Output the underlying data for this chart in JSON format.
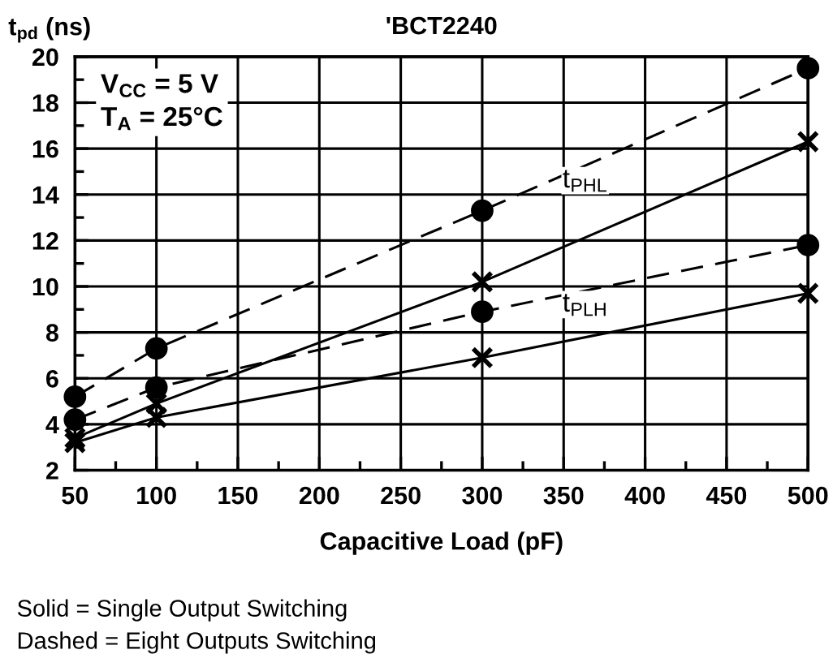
{
  "chart_data": {
    "type": "line",
    "title": "'BCT2240",
    "ylabel": "t$_{pd}$ (ns)",
    "xlabel": "Capacitive Load (pF)",
    "x": [
      50,
      100,
      300,
      500
    ],
    "series": [
      {
        "color": "#000000",
        "line_style": "dashed",
        "marker": "circle",
        "values": [
          5.2,
          7.3,
          13.3,
          19.5
        ]
      },
      {
        "color": "#000000",
        "line_style": "dashed",
        "marker": "circle",
        "values": [
          4.2,
          5.6,
          8.9,
          11.8
        ]
      },
      {
        "color": "#000000",
        "line_style": "solid",
        "marker": "cross",
        "values": [
          3.4,
          4.9,
          10.2,
          16.3
        ]
      },
      {
        "color": "#000000",
        "line_style": "solid",
        "marker": "cross",
        "values": [
          3.2,
          4.3,
          6.9,
          9.7
        ]
      }
    ],
    "xlim": [
      50,
      500
    ],
    "ylim": [
      2,
      20
    ],
    "xticks": [
      50,
      {
        "value": 75,
        "label": null
      },
      100,
      {
        "value": 125,
        "label": null
      },
      150,
      {
        "value": 175,
        "label": null
      },
      200,
      {
        "value": 225,
        "label": null
      },
      250,
      {
        "value": 275,
        "label": null
      },
      300,
      {
        "value": 325,
        "label": null
      },
      350,
      {
        "value": 375,
        "label": null
      },
      400,
      {
        "value": 425,
        "label": null
      },
      450,
      {
        "value": 475,
        "label": null
      },
      500
    ],
    "yticks": [
      2,
      {
        "value": 3,
        "label": null
      },
      4,
      {
        "value": 5,
        "label": null
      },
      6,
      {
        "value": 7,
        "label": null
      },
      8,
      {
        "value": 9,
        "label": null
      },
      10,
      {
        "value": 11,
        "label": null
      },
      12,
      {
        "value": 13,
        "label": null
      },
      14,
      {
        "value": 15,
        "label": null
      },
      16,
      {
        "value": 17,
        "label": null
      },
      18,
      {
        "value": 19,
        "label": null
      },
      20
    ],
    "grid": true,
    "legend": false,
    "annotations": [
      "t$_{PHL}$",
      "t$_{PLH}$",
      "V$_{CC}$ = 5 V\nT$_{A}$ = 25°C",
      "Solid = Single Output Switching\nDashed = Eight Outputs Switching"
    ]
  }
}
